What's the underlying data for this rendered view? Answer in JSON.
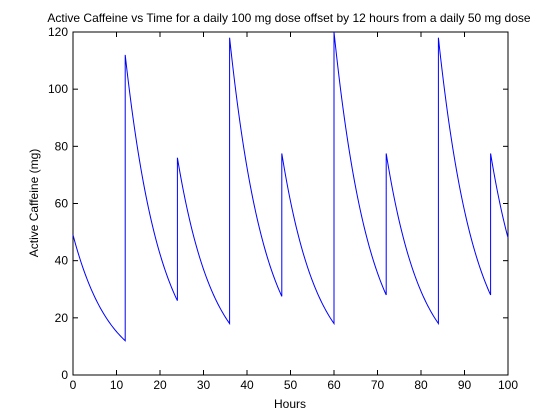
{
  "chart_data": {
    "type": "line",
    "title": "Active Caffeine vs Time for a daily 100 mg dose offset by 12 hours from a daily 50 mg dose",
    "xlabel": "Hours",
    "ylabel": "Active Caffeine (mg)",
    "xlim": [
      0,
      100
    ],
    "ylim": [
      0,
      120
    ],
    "xticks": [
      0,
      10,
      20,
      30,
      40,
      50,
      60,
      70,
      80,
      90,
      100
    ],
    "yticks": [
      0,
      20,
      40,
      60,
      80,
      100,
      120
    ],
    "grid": false,
    "legend": "none",
    "series": [
      {
        "color": "#0000ff",
        "x": [
          0,
          12,
          12,
          24,
          24,
          36,
          36,
          48,
          48,
          60,
          60,
          72,
          72,
          84,
          84,
          96,
          96,
          100
        ],
        "y": [
          49,
          12,
          112,
          26,
          76,
          18,
          118,
          27.5,
          77.5,
          18,
          120,
          28,
          77.5,
          18,
          118,
          28,
          77.5,
          48
        ]
      }
    ]
  }
}
